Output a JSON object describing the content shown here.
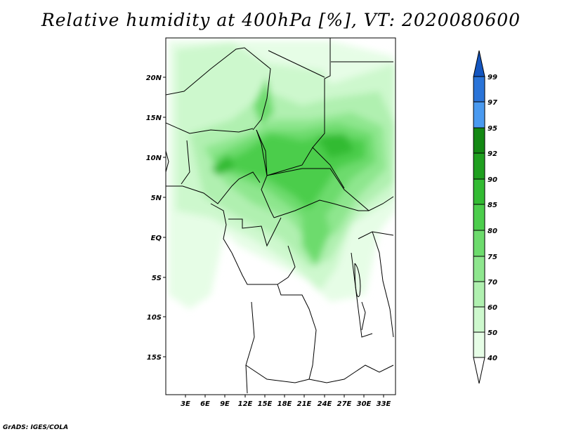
{
  "title": "Relative humidity at 400hPa [%], VT: 2020080600",
  "credit": "GrADS: IGES/COLA",
  "map": {
    "lat_labels": [
      "20N",
      "15N",
      "10N",
      "5N",
      "EQ",
      "5S",
      "10S",
      "15S"
    ],
    "lon_labels": [
      "3E",
      "6E",
      "9E",
      "12E",
      "15E",
      "18E",
      "21E",
      "24E",
      "27E",
      "30E",
      "33E"
    ]
  },
  "colorbar": {
    "levels": [
      "40",
      "50",
      "60",
      "70",
      "75",
      "80",
      "85",
      "90",
      "92",
      "95",
      "97",
      "99"
    ],
    "colors": [
      "#ffffff",
      "#e6fde6",
      "#cdf8cd",
      "#b0f0b0",
      "#8ee68e",
      "#6ddb6d",
      "#4ccd4c",
      "#33bb33",
      "#1f9f1f",
      "#138813",
      "#4a9af0",
      "#2a74d8",
      "#1456c0"
    ]
  }
}
